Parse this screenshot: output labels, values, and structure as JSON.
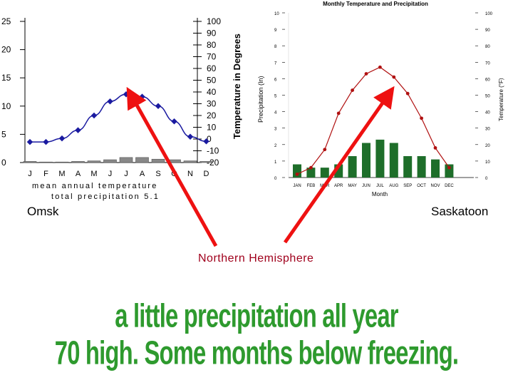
{
  "omsk": {
    "label": "Omsk",
    "chart_data": {
      "type": "line",
      "title": "",
      "months_short": [
        "J",
        "F",
        "M",
        "A",
        "M",
        "J",
        "J",
        "A",
        "S",
        "O",
        "N",
        "D"
      ],
      "temperature_f": [
        -2.5,
        -2.5,
        0.5,
        7.5,
        20,
        32,
        38,
        36,
        28,
        15,
        2,
        -2
      ],
      "precip_in": [
        0.2,
        0.1,
        0.1,
        0.2,
        0.3,
        0.5,
        0.9,
        0.9,
        0.6,
        0.5,
        0.3,
        0.2
      ],
      "precip_ticks": [
        "0",
        "5",
        "10",
        "15",
        "20",
        "25"
      ],
      "temp_ticks": [
        "100",
        "90",
        "80",
        "70",
        "60",
        "50",
        "40",
        "30",
        "20",
        "10",
        "0",
        "-10",
        "-20"
      ],
      "ylabel_right": "Temperature in Degrees",
      "annotation_line1": "mean annual temperature",
      "annotation_line2": "total precipitation 5.1",
      "precip_range": [
        0,
        25
      ],
      "temp_range": [
        -20,
        100
      ]
    }
  },
  "saskatoon": {
    "label": "Saskatoon",
    "chart_data": {
      "type": "bar+line",
      "title": "Monthly Temperature and Precipitation",
      "xlabel": "Month",
      "ylabel_left": "Precipitation (In)",
      "ylabel_right": "Temperature (°F)",
      "months": [
        "JAN",
        "FEB",
        "MAR",
        "APR",
        "MAY",
        "JUN",
        "JUL",
        "AUG",
        "SEP",
        "OCT",
        "NOV",
        "DEC"
      ],
      "precip_in": [
        0.8,
        0.6,
        0.6,
        0.8,
        1.3,
        2.1,
        2.3,
        2.1,
        1.3,
        1.3,
        1.1,
        0.8
      ],
      "temperature_f": [
        2,
        6,
        17,
        39,
        53,
        63,
        67,
        61,
        51,
        36,
        18,
        6
      ],
      "left_ticks": [
        "0",
        "1",
        "2",
        "3",
        "4",
        "5",
        "6",
        "7",
        "8",
        "9",
        "10"
      ],
      "right_ticks": [
        "0",
        "10",
        "20",
        "30",
        "40",
        "50",
        "60",
        "70",
        "80",
        "90",
        "100"
      ],
      "left_range": [
        0,
        10
      ],
      "right_range": [
        0,
        100
      ]
    }
  },
  "annotation": "Northern Hemisphere",
  "caption": {
    "line1": "a little precipitation all year",
    "line2": "70 high.  Some months below freezing."
  },
  "colors": {
    "omsk_line": "#1a1aa0",
    "omsk_bar": "#888888",
    "sask_line": "#b01010",
    "sask_bar": "#1e6e2a",
    "arrow": "#ee1111",
    "caption": "#2e9a2e",
    "annotation": "#a0001c"
  }
}
